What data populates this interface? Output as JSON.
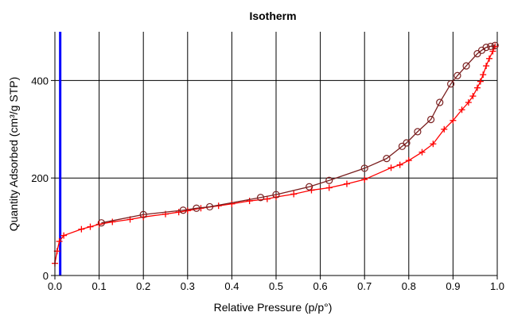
{
  "chart_data": {
    "type": "line",
    "title": "Isotherm",
    "xlabel": "Relative Pressure (p/p°)",
    "ylabel": "Quantity Adsorbed (cm³/g STP)",
    "xlim": [
      0.0,
      1.0
    ],
    "ylim": [
      0,
      500
    ],
    "x_ticks": [
      "0.0",
      "0.1",
      "0.2",
      "0.3",
      "0.4",
      "0.5",
      "0.6",
      "0.7",
      "0.8",
      "0.9",
      "1.0"
    ],
    "y_ticks": [
      "0",
      "200",
      "400"
    ],
    "grid": true,
    "vertical_marker": {
      "x": 0.012,
      "color": "#0000ff"
    },
    "series": [
      {
        "marker": "plus",
        "color": "#ff0000",
        "x": [
          0.0,
          0.005,
          0.01,
          0.02,
          0.06,
          0.08,
          0.1,
          0.13,
          0.17,
          0.2,
          0.25,
          0.28,
          0.3,
          0.33,
          0.37,
          0.4,
          0.44,
          0.48,
          0.5,
          0.54,
          0.58,
          0.62,
          0.66,
          0.7,
          0.76,
          0.78,
          0.8,
          0.83,
          0.855,
          0.88,
          0.9,
          0.92,
          0.935,
          0.945,
          0.955,
          0.962,
          0.968,
          0.975,
          0.982,
          0.99,
          0.995
        ],
        "y": [
          25,
          50,
          70,
          82,
          95,
          100,
          105,
          110,
          115,
          120,
          126,
          130,
          133,
          138,
          143,
          147,
          153,
          157,
          161,
          167,
          175,
          180,
          188,
          197,
          221,
          227,
          236,
          253,
          270,
          300,
          318,
          340,
          355,
          368,
          385,
          398,
          412,
          430,
          445,
          460,
          470
        ]
      },
      {
        "marker": "circle",
        "color": "#7a1f1f",
        "x": [
          0.995,
          0.985,
          0.975,
          0.965,
          0.955,
          0.93,
          0.91,
          0.895,
          0.87,
          0.85,
          0.82,
          0.795,
          0.785,
          0.75,
          0.7,
          0.62,
          0.575,
          0.5,
          0.465,
          0.35,
          0.32,
          0.29,
          0.2,
          0.105
        ],
        "y": [
          472,
          470,
          468,
          462,
          455,
          430,
          410,
          393,
          355,
          320,
          295,
          272,
          265,
          240,
          220,
          195,
          182,
          166,
          160,
          141,
          138,
          134,
          125,
          108
        ]
      }
    ]
  }
}
